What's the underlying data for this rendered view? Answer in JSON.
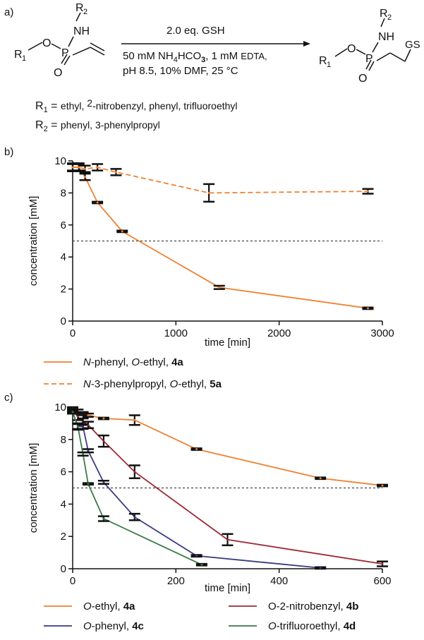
{
  "panel_labels": {
    "a": "a)",
    "b": "b)",
    "c": "c)"
  },
  "scheme": {
    "reagent_top": "2.0 eq. GSH",
    "conditions_line1_a": "50 mM NH",
    "conditions_line1_sub4": "4",
    "conditions_line1_b": "HCO",
    "conditions_line1_sub3": "3",
    "conditions_line1_c": ", 1 mM ",
    "conditions_line1_d": "EDTA,",
    "conditions_line2": "pH 8.5, 10% DMF, 25 °C",
    "reactant": {
      "R1": "R",
      "R1_sub": "1",
      "O": "O",
      "P": "P",
      "O2": "O",
      "NH": "NH",
      "R2": "R",
      "R2_sub": "2"
    },
    "product": {
      "R1": "R",
      "R1_sub": "1",
      "O": "O",
      "P": "P",
      "O2": "O",
      "NH": "NH",
      "R2": "R",
      "R2_sub": "2",
      "GS": "GS"
    },
    "r1_label": "R",
    "r1_sub": "1",
    "r1_eq": " = ",
    "r1_values_a": "ethyl, ",
    "r1_values_b": "2",
    "r1_values_c": "-nitrobenzyl, phenyl, trifluoroethyl",
    "r2_label": "R",
    "r2_sub": "2",
    "r2_eq": " = ",
    "r2_values": "phenyl, 3-phenylpropyl"
  },
  "chart_data": [
    {
      "id": "b",
      "type": "line",
      "xlabel": "time [min]",
      "ylabel": "concentration [mM]",
      "xlim": [
        0,
        3000
      ],
      "ylim": [
        0,
        10
      ],
      "xticks": [
        0,
        1000,
        2000,
        3000
      ],
      "yticks": [
        0,
        2,
        4,
        6,
        8,
        10
      ],
      "reference_line": 5,
      "series": [
        {
          "legend_a": "N",
          "legend_b": "-phenyl, ",
          "legend_c": "O",
          "legend_d": "-ethyl, ",
          "legend_e": "4a",
          "color": "#f08132",
          "dash": "solid",
          "x": [
            0,
            60,
            120,
            240,
            480,
            1420,
            2860
          ],
          "y": [
            9.6,
            9.6,
            9.0,
            7.4,
            5.6,
            2.1,
            0.8
          ],
          "err": [
            0.25,
            0.25,
            0.2,
            0.05,
            0.05,
            0.1,
            0.05
          ]
        },
        {
          "legend_a": "N",
          "legend_b": "-3-phenylpropyl, ",
          "legend_c": "O",
          "legend_d": "-ethyl, ",
          "legend_e": "5a",
          "color": "#f08132",
          "dash": "dashed",
          "x": [
            0,
            60,
            120,
            240,
            420,
            1320,
            2860
          ],
          "y": [
            9.6,
            9.6,
            9.5,
            9.6,
            9.3,
            8.0,
            8.1
          ],
          "err": [
            0.2,
            0.2,
            0.2,
            0.2,
            0.2,
            0.55,
            0.15
          ]
        }
      ]
    },
    {
      "id": "c",
      "type": "line",
      "xlabel": "time [min]",
      "ylabel": "concentration [mM]",
      "xlim": [
        0,
        600
      ],
      "ylim": [
        0,
        10
      ],
      "xticks": [
        0,
        200,
        400,
        600
      ],
      "yticks": [
        0,
        2,
        4,
        6,
        8,
        10
      ],
      "reference_line": 5,
      "series": [
        {
          "legend_a": "",
          "legend_b": "",
          "legend_c": "O",
          "legend_d": "-ethyl, ",
          "legend_e": "4a",
          "color": "#f08132",
          "dash": "solid",
          "x": [
            0,
            10,
            20,
            30,
            60,
            120,
            240,
            480,
            600
          ],
          "y": [
            9.9,
            9.75,
            9.6,
            9.5,
            9.3,
            9.2,
            7.4,
            5.6,
            5.15
          ],
          "err": [
            0.1,
            0.1,
            0.1,
            0.1,
            0.05,
            0.3,
            0.05,
            0.05,
            0.05
          ]
        },
        {
          "legend_a": "",
          "legend_b": "",
          "legend_c": "",
          "legend_d": "O-2-nitrobenzyl, ",
          "legend_e": "4b",
          "color": "#9e2a36",
          "dash": "solid",
          "x": [
            0,
            10,
            20,
            30,
            60,
            120,
            300,
            600
          ],
          "y": [
            9.8,
            9.4,
            9.1,
            8.9,
            7.9,
            6.0,
            1.8,
            0.3
          ],
          "err": [
            0.1,
            0.2,
            0.2,
            0.2,
            0.35,
            0.4,
            0.35,
            0.15
          ]
        },
        {
          "legend_a": "",
          "legend_b": "",
          "legend_c": "O",
          "legend_d": "-phenyl, ",
          "legend_e": "4c",
          "color": "#3a3a82",
          "dash": "solid",
          "x": [
            0,
            10,
            20,
            30,
            60,
            120,
            240,
            480
          ],
          "y": [
            9.7,
            8.8,
            8.8,
            7.3,
            5.35,
            3.2,
            0.8,
            0.05
          ],
          "err": [
            0.1,
            0.15,
            0.15,
            0.1,
            0.1,
            0.2,
            0.05,
            0.05
          ]
        },
        {
          "legend_a": "",
          "legend_b": "",
          "legend_c": "O",
          "legend_d": "-trifluoroethyl, ",
          "legend_e": "4d",
          "color": "#3a7a48",
          "dash": "solid",
          "x": [
            0,
            10,
            20,
            30,
            60,
            250
          ],
          "y": [
            9.7,
            8.8,
            7.1,
            5.25,
            3.1,
            0.25
          ],
          "err": [
            0.1,
            0.2,
            0.1,
            0.05,
            0.15,
            0.05
          ]
        }
      ]
    }
  ]
}
